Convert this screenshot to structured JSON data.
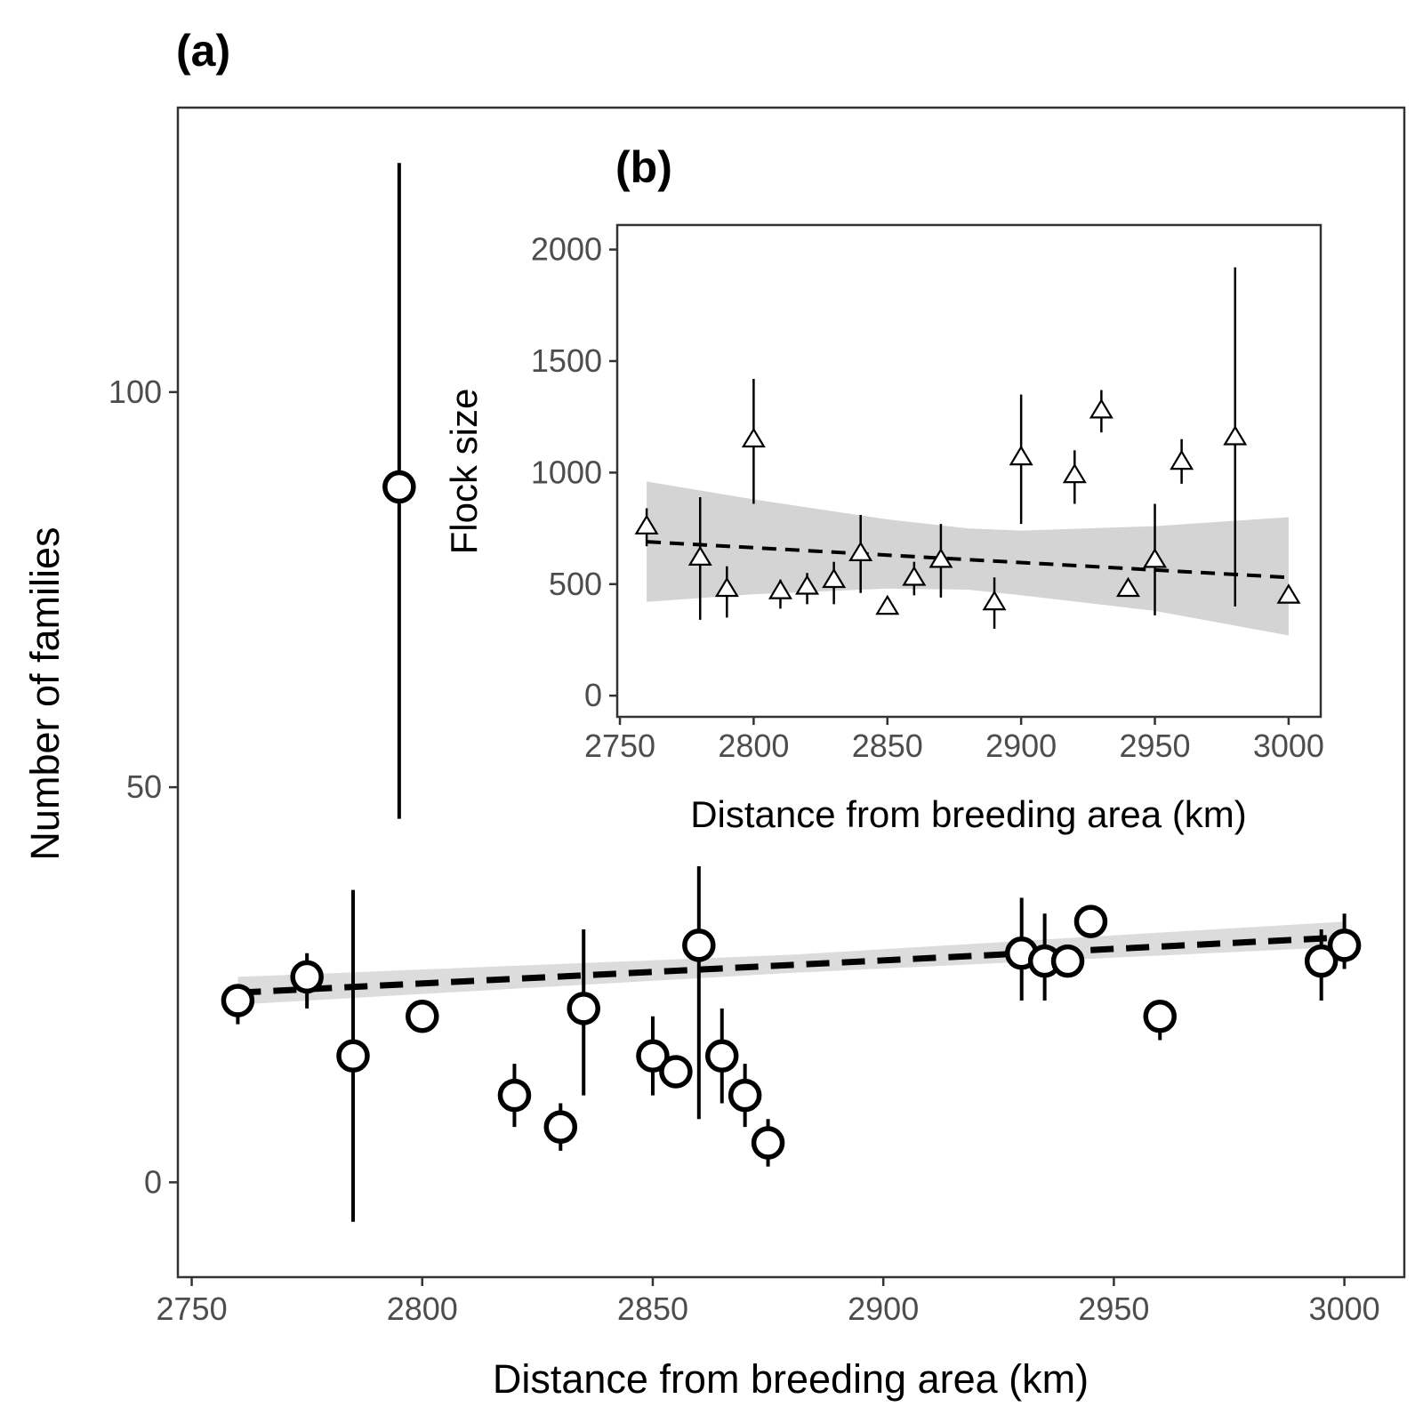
{
  "chart_data": [
    {
      "id": "a",
      "type": "scatter",
      "panel_label": "(a)",
      "xlabel": "Distance from breeding area (km)",
      "ylabel": "Number of families",
      "xlim": [
        2747,
        3013
      ],
      "ylim": [
        -12,
        136
      ],
      "xticks": [
        2750,
        2800,
        2850,
        2900,
        2950,
        3000
      ],
      "yticks": [
        0,
        50,
        100
      ],
      "grid": false,
      "marker": "open-circle",
      "points": [
        {
          "x": 2760,
          "y": 23,
          "lo": 20,
          "hi": 25
        },
        {
          "x": 2775,
          "y": 26,
          "lo": 22,
          "hi": 29
        },
        {
          "x": 2785,
          "y": 16,
          "lo": -5,
          "hi": 37
        },
        {
          "x": 2800,
          "y": 21,
          "lo": 21,
          "hi": 21
        },
        {
          "x": 2820,
          "y": 11,
          "lo": 7,
          "hi": 15
        },
        {
          "x": 2830,
          "y": 7,
          "lo": 4,
          "hi": 10
        },
        {
          "x": 2835,
          "y": 22,
          "lo": 11,
          "hi": 32
        },
        {
          "x": 2850,
          "y": 16,
          "lo": 11,
          "hi": 21
        },
        {
          "x": 2855,
          "y": 14,
          "lo": 14,
          "hi": 14
        },
        {
          "x": 2860,
          "y": 30,
          "lo": 8,
          "hi": 40
        },
        {
          "x": 2865,
          "y": 16,
          "lo": 10,
          "hi": 22
        },
        {
          "x": 2870,
          "y": 11,
          "lo": 7,
          "hi": 15
        },
        {
          "x": 2875,
          "y": 5,
          "lo": 2,
          "hi": 8
        },
        {
          "x": 2795,
          "y": 88,
          "lo": 46,
          "hi": 129
        },
        {
          "x": 2930,
          "y": 29,
          "lo": 23,
          "hi": 36
        },
        {
          "x": 2935,
          "y": 28,
          "lo": 23,
          "hi": 34
        },
        {
          "x": 2940,
          "y": 28,
          "lo": 28,
          "hi": 28
        },
        {
          "x": 2945,
          "y": 33,
          "lo": 31,
          "hi": 35
        },
        {
          "x": 2960,
          "y": 21,
          "lo": 18,
          "hi": 23
        },
        {
          "x": 2995,
          "y": 28,
          "lo": 23,
          "hi": 32
        },
        {
          "x": 3000,
          "y": 30,
          "lo": 27,
          "hi": 34
        }
      ],
      "trend": {
        "x0": 2760,
        "y0": 24,
        "x1": 3000,
        "y1": 31,
        "style": "dashed"
      },
      "ribbon": [
        {
          "x": 2760,
          "lo": 22.5,
          "hi": 26
        },
        {
          "x": 2880,
          "lo": 26.5,
          "hi": 28.8
        },
        {
          "x": 3000,
          "lo": 29.8,
          "hi": 33
        }
      ]
    },
    {
      "id": "b",
      "type": "scatter",
      "panel_label": "(b)",
      "xlabel": "Distance from breeding area (km)",
      "ylabel": "Flock size",
      "xlim": [
        2749,
        3012
      ],
      "ylim": [
        -95,
        2110
      ],
      "xticks": [
        2750,
        2800,
        2850,
        2900,
        2950,
        3000
      ],
      "yticks": [
        0,
        500,
        1000,
        1500,
        2000
      ],
      "grid": false,
      "marker": "open-triangle",
      "points": [
        {
          "x": 2760,
          "y": 760,
          "lo": 670,
          "hi": 840
        },
        {
          "x": 2780,
          "y": 620,
          "lo": 340,
          "hi": 890
        },
        {
          "x": 2790,
          "y": 480,
          "lo": 350,
          "hi": 580
        },
        {
          "x": 2800,
          "y": 1150,
          "lo": 860,
          "hi": 1420
        },
        {
          "x": 2810,
          "y": 470,
          "lo": 390,
          "hi": 520
        },
        {
          "x": 2820,
          "y": 490,
          "lo": 410,
          "hi": 550
        },
        {
          "x": 2830,
          "y": 520,
          "lo": 410,
          "hi": 600
        },
        {
          "x": 2840,
          "y": 640,
          "lo": 460,
          "hi": 810
        },
        {
          "x": 2850,
          "y": 400,
          "lo": 370,
          "hi": 410
        },
        {
          "x": 2860,
          "y": 530,
          "lo": 450,
          "hi": 600
        },
        {
          "x": 2870,
          "y": 610,
          "lo": 440,
          "hi": 770
        },
        {
          "x": 2890,
          "y": 420,
          "lo": 300,
          "hi": 530
        },
        {
          "x": 2900,
          "y": 1070,
          "lo": 770,
          "hi": 1350
        },
        {
          "x": 2920,
          "y": 990,
          "lo": 860,
          "hi": 1100
        },
        {
          "x": 2930,
          "y": 1280,
          "lo": 1180,
          "hi": 1370
        },
        {
          "x": 2940,
          "y": 480,
          "lo": 480,
          "hi": 480
        },
        {
          "x": 2950,
          "y": 610,
          "lo": 360,
          "hi": 860
        },
        {
          "x": 2960,
          "y": 1050,
          "lo": 950,
          "hi": 1150
        },
        {
          "x": 2980,
          "y": 1160,
          "lo": 400,
          "hi": 1920
        },
        {
          "x": 3000,
          "y": 450,
          "lo": 450,
          "hi": 450
        }
      ],
      "trend": {
        "x0": 2760,
        "y0": 690,
        "x1": 3000,
        "y1": 530,
        "style": "dashed"
      },
      "ribbon": [
        {
          "x": 2760,
          "lo": 420,
          "hi": 960
        },
        {
          "x": 2800,
          "lo": 455,
          "hi": 880
        },
        {
          "x": 2850,
          "lo": 480,
          "hi": 790
        },
        {
          "x": 2880,
          "lo": 475,
          "hi": 750
        },
        {
          "x": 2900,
          "lo": 450,
          "hi": 740
        },
        {
          "x": 2950,
          "lo": 380,
          "hi": 760
        },
        {
          "x": 3000,
          "lo": 270,
          "hi": 800
        }
      ]
    }
  ]
}
